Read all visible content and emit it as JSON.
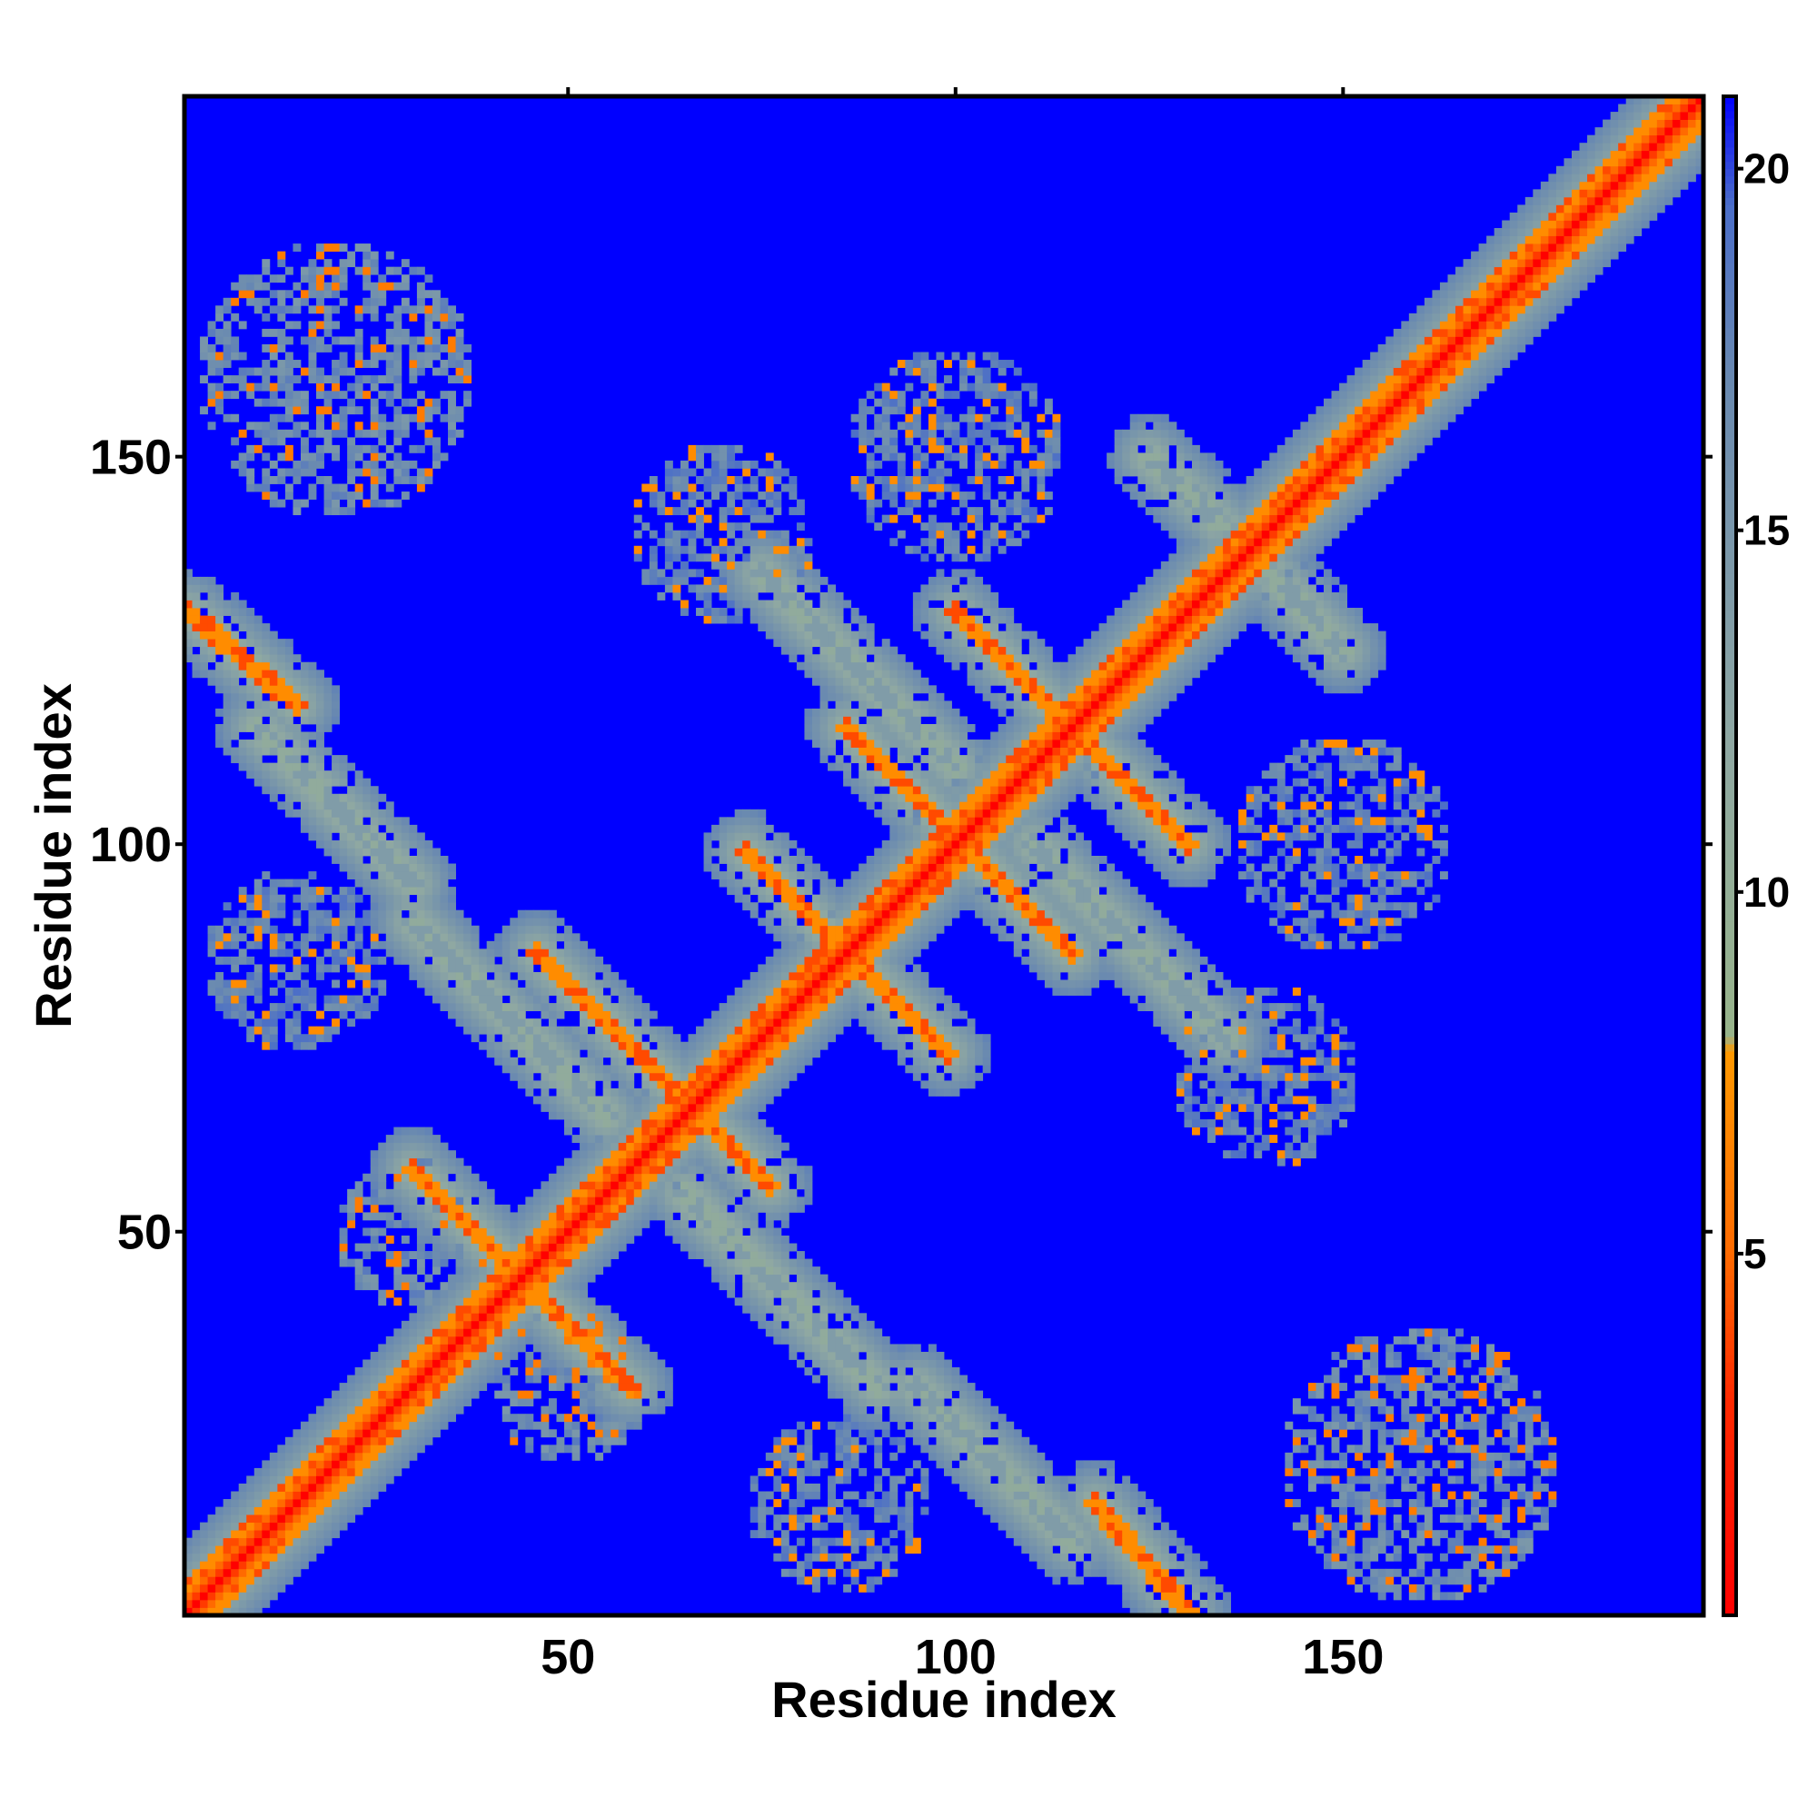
{
  "chart_data": {
    "type": "heatmap",
    "title": "",
    "xlabel": "Residue index",
    "ylabel": "Residue index",
    "xlim": [
      1,
      196
    ],
    "ylim": [
      1,
      196
    ],
    "x_ticks": [
      50,
      100,
      150
    ],
    "y_ticks": [
      50,
      100,
      150
    ],
    "colorbar": {
      "range": [
        0,
        21
      ],
      "ticks": [
        5,
        10,
        15,
        20
      ],
      "stops": [
        {
          "value": 0,
          "color": "#ff0000"
        },
        {
          "value": 3,
          "color": "#ff2a00"
        },
        {
          "value": 5,
          "color": "#ff6a00"
        },
        {
          "value": 7.8,
          "color": "#ff9900"
        },
        {
          "value": 8,
          "color": "#98b48a"
        },
        {
          "value": 12,
          "color": "#8fa8a2"
        },
        {
          "value": 17,
          "color": "#6a8ab0"
        },
        {
          "value": 19.5,
          "color": "#4b6ec8"
        },
        {
          "value": 21,
          "color": "#0000ff"
        }
      ]
    },
    "background_value": 21,
    "background_color": "#0000ff",
    "diagonal_value": 0,
    "contact_bands": [
      {
        "from": [
          30,
          58
        ],
        "to": [
          58,
          30
        ],
        "value": 7
      },
      {
        "from": [
          46,
          86
        ],
        "to": [
          76,
          56
        ],
        "value": 7
      },
      {
        "from": [
          73,
          99
        ],
        "to": [
          99,
          73
        ],
        "value": 7
      },
      {
        "from": [
          86,
          115
        ],
        "to": [
          115,
          86
        ],
        "value": 7
      },
      {
        "from": [
          100,
          130
        ],
        "to": [
          130,
          100
        ],
        "value": 7
      },
      {
        "from": [
          1,
          130
        ],
        "to": [
          15,
          118
        ],
        "value": 7
      },
      {
        "from": [
          118,
          15
        ],
        "to": [
          130,
          1
        ],
        "value": 7
      },
      {
        "from": [
          10,
          115
        ],
        "to": [
          30,
          95
        ],
        "value": 14
      },
      {
        "from": [
          95,
          30
        ],
        "to": [
          115,
          10
        ],
        "value": 14
      },
      {
        "from": [
          30,
          90
        ],
        "to": [
          55,
          65
        ],
        "value": 14
      },
      {
        "from": [
          65,
          55
        ],
        "to": [
          90,
          30
        ],
        "value": 14
      },
      {
        "from": [
          75,
          135
        ],
        "to": [
          100,
          110
        ],
        "value": 14
      },
      {
        "from": [
          110,
          100
        ],
        "to": [
          135,
          75
        ],
        "value": 14
      },
      {
        "from": [
          125,
          150
        ],
        "to": [
          140,
          136
        ],
        "value": 14
      },
      {
        "from": [
          136,
          140
        ],
        "to": [
          150,
          125
        ],
        "value": 14
      }
    ],
    "contact_clusters": [
      {
        "center": [
          20,
          160
        ],
        "radius": 18,
        "value": 14
      },
      {
        "center": [
          160,
          20
        ],
        "radius": 18,
        "value": 14
      },
      {
        "center": [
          70,
          140
        ],
        "radius": 12,
        "value": 15
      },
      {
        "center": [
          140,
          70
        ],
        "radius": 12,
        "value": 15
      },
      {
        "center": [
          100,
          150
        ],
        "radius": 14,
        "value": 15
      },
      {
        "center": [
          150,
          100
        ],
        "radius": 14,
        "value": 15
      },
      {
        "center": [
          15,
          85
        ],
        "radius": 12,
        "value": 15
      },
      {
        "center": [
          85,
          15
        ],
        "radius": 12,
        "value": 15
      },
      {
        "center": [
          30,
          50
        ],
        "radius": 10,
        "value": 14
      },
      {
        "center": [
          50,
          30
        ],
        "radius": 10,
        "value": 14
      }
    ]
  }
}
